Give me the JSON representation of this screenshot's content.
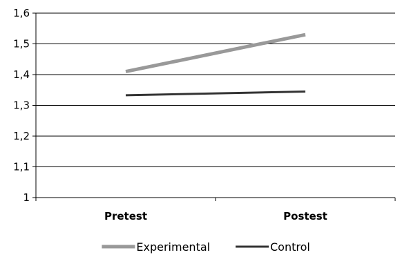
{
  "chart_data": {
    "type": "line",
    "categories": [
      "Pretest",
      "Postest"
    ],
    "series": [
      {
        "name": "Experimental",
        "values": [
          1.41,
          1.53
        ],
        "color": "#999999"
      },
      {
        "name": "Control",
        "values": [
          1.333,
          1.345
        ],
        "color": "#333333"
      }
    ],
    "ylim": [
      1,
      1.6
    ],
    "yticks": [
      1,
      1.1,
      1.2,
      1.3,
      1.4,
      1.5,
      1.6
    ],
    "ytick_labels": [
      "1",
      "1,1",
      "1,2",
      "1,3",
      "1,4",
      "1,5",
      "1,6"
    ],
    "grid": true,
    "legend": "bottom",
    "title": "",
    "xlabel": "",
    "ylabel": ""
  }
}
